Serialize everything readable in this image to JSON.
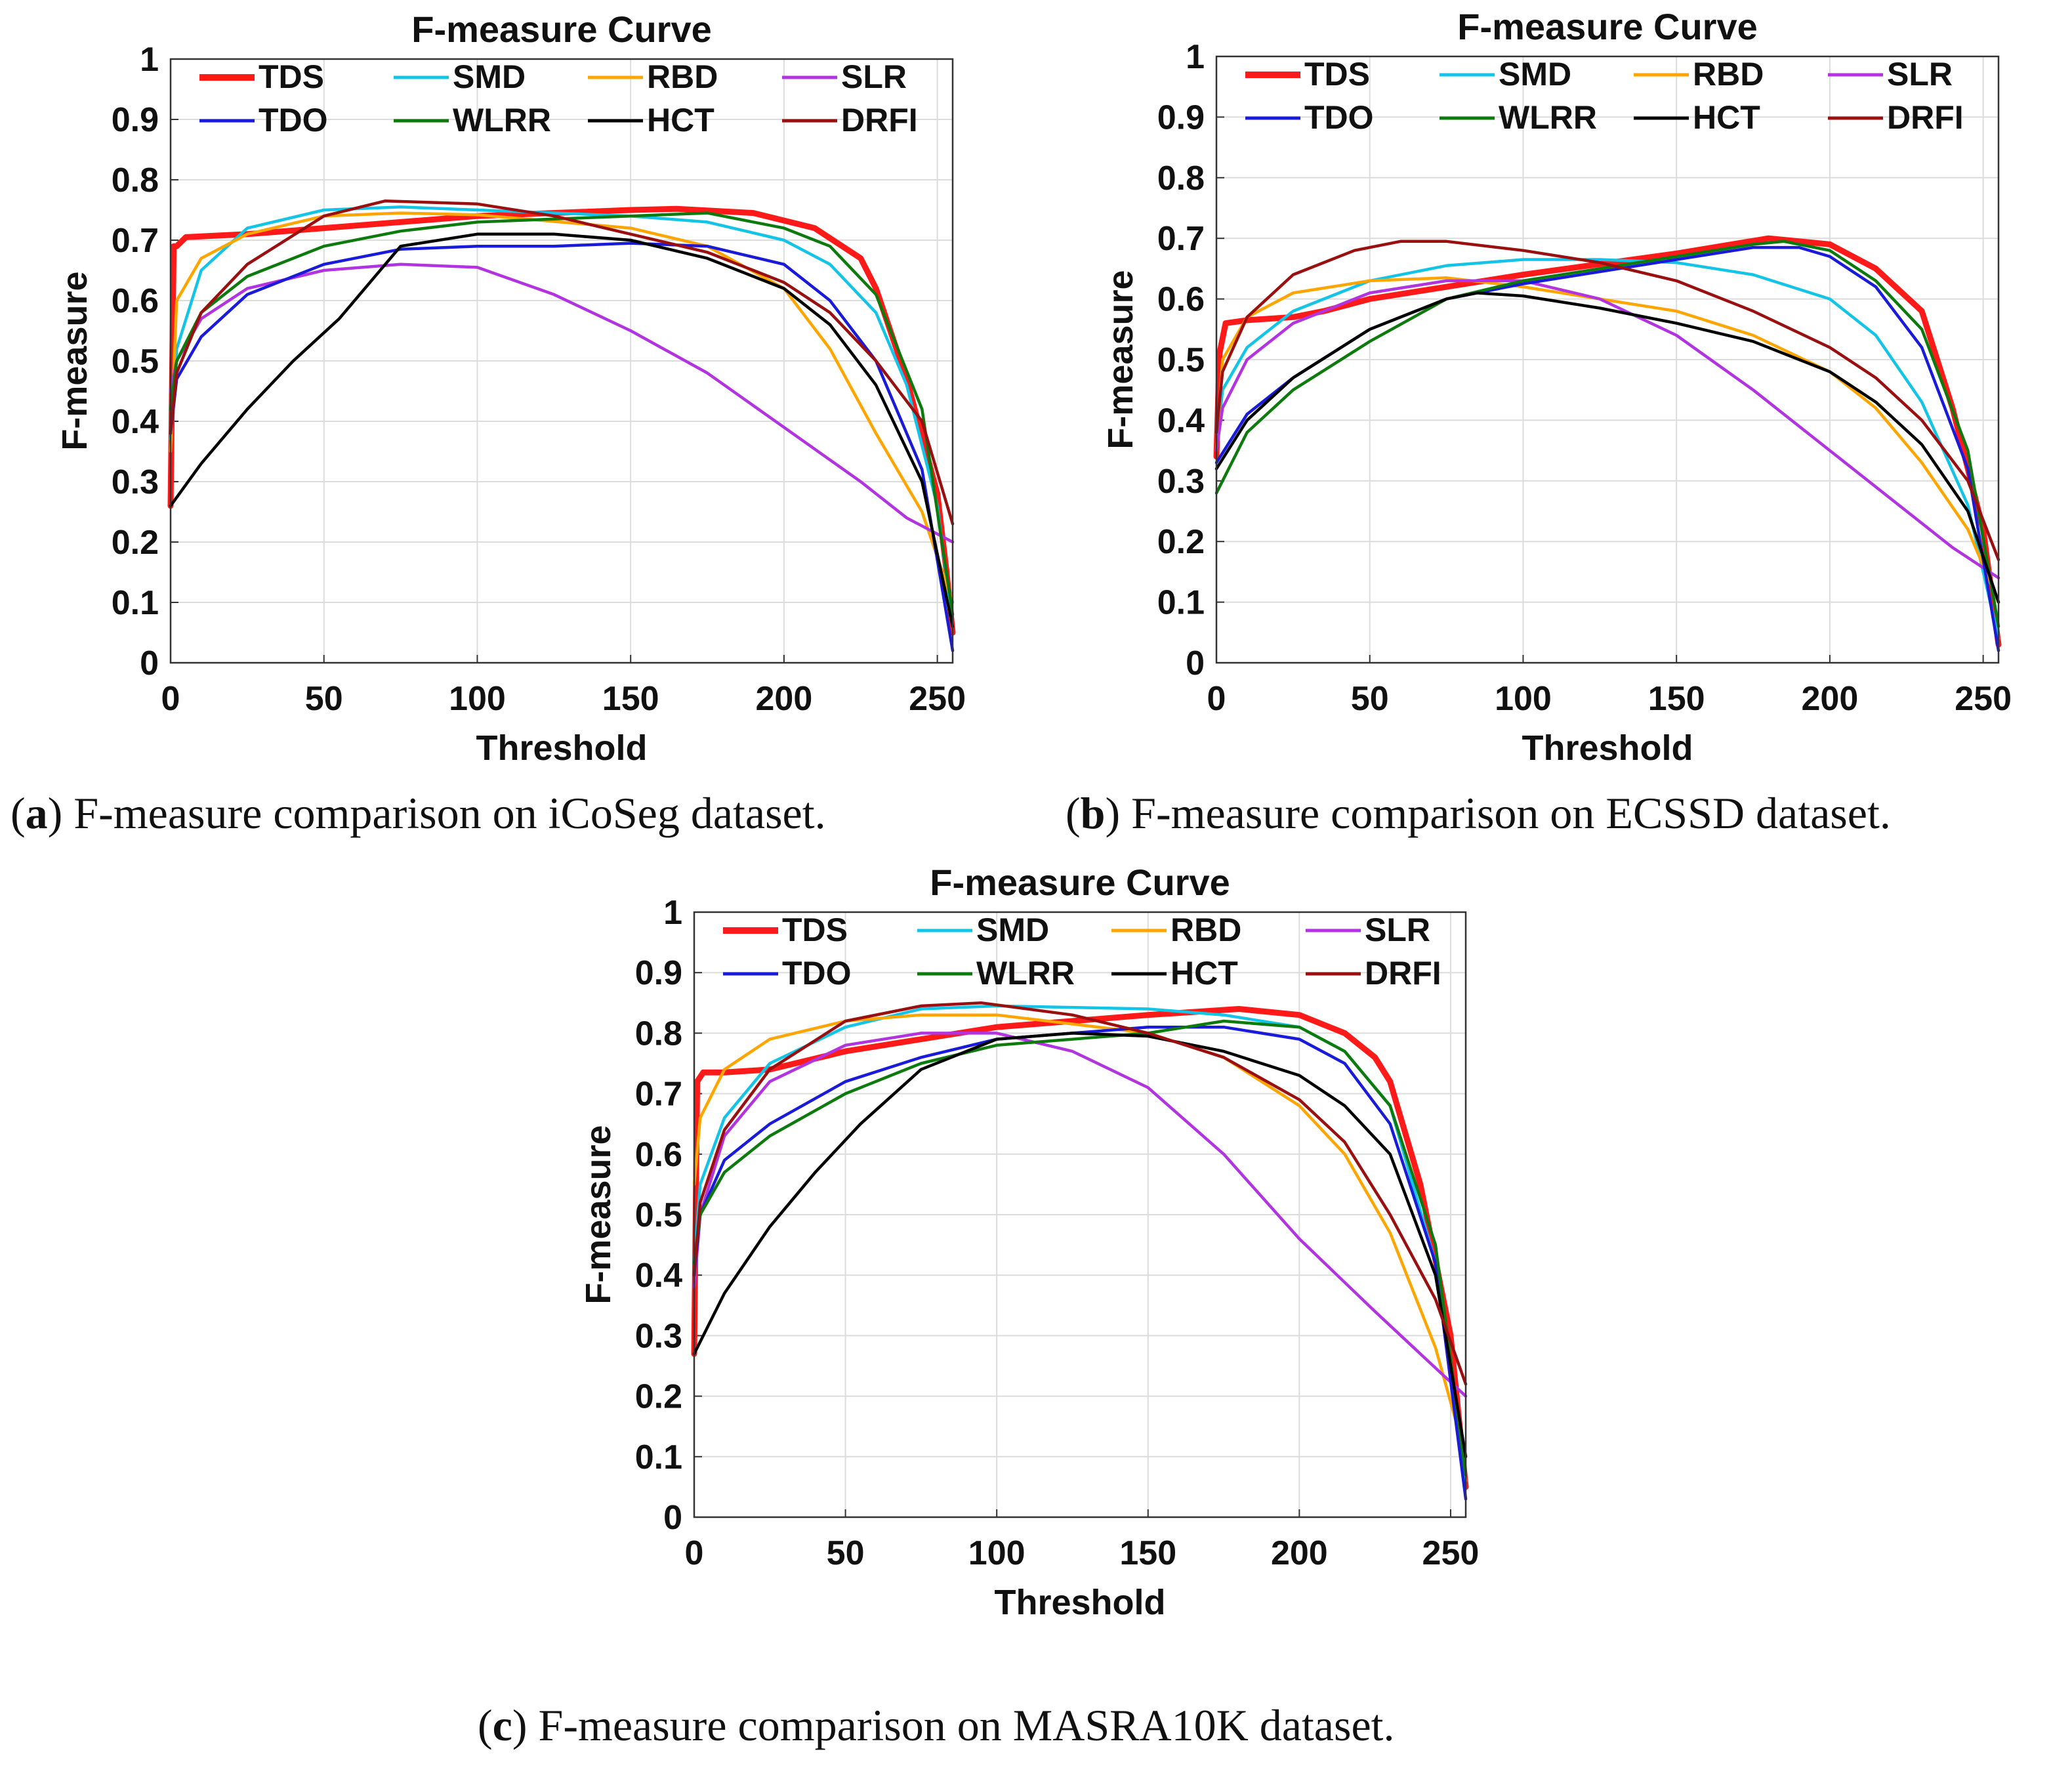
{
  "colors": {
    "TDS": "#ff1a1a",
    "SMD": "#14c4e6",
    "RBD": "#ffa500",
    "SLR": "#b233e0",
    "TDO": "#1a1ad9",
    "WLRR": "#0d7a0d",
    "HCT": "#000000",
    "DRFI": "#9a1010"
  },
  "captions": [
    {
      "tag": "a",
      "text": "F-measure comparison on iCoSeg dataset."
    },
    {
      "tag": "b",
      "text": "F-measure comparison on ECSSD dataset."
    },
    {
      "tag": "c",
      "text": "F-measure comparison on MASRA10K dataset."
    }
  ],
  "chart_data": [
    {
      "type": "line",
      "title": "F-measure Curve",
      "xlabel": "Threshold",
      "ylabel": "F-measure",
      "xlim": [
        0,
        255
      ],
      "ylim": [
        0,
        1
      ],
      "xticks": [
        "0",
        "50",
        "100",
        "150",
        "200",
        "250"
      ],
      "yticks": [
        "0",
        "0.1",
        "0.2",
        "0.3",
        "0.4",
        "0.5",
        "0.6",
        "0.7",
        "0.8",
        "0.9",
        "1"
      ],
      "grid": true,
      "legend": [
        "TDS",
        "SMD",
        "RBD",
        "SLR",
        "TDO",
        "WLRR",
        "HCT",
        "DRFI"
      ],
      "series": [
        {
          "name": "TDS",
          "x": [
            0,
            1,
            2,
            5,
            25,
            50,
            100,
            150,
            165,
            190,
            210,
            225,
            230,
            240,
            250,
            253,
            255
          ],
          "y": [
            0.26,
            0.69,
            0.69,
            0.705,
            0.71,
            0.72,
            0.74,
            0.75,
            0.752,
            0.745,
            0.72,
            0.67,
            0.62,
            0.47,
            0.28,
            0.15,
            0.05
          ]
        },
        {
          "name": "SMD",
          "x": [
            0,
            2,
            10,
            25,
            50,
            75,
            100,
            150,
            175,
            200,
            215,
            230,
            240,
            250,
            255
          ],
          "y": [
            0.37,
            0.52,
            0.65,
            0.72,
            0.75,
            0.755,
            0.75,
            0.74,
            0.73,
            0.7,
            0.66,
            0.58,
            0.46,
            0.26,
            0.06
          ]
        },
        {
          "name": "RBD",
          "x": [
            0,
            2,
            10,
            25,
            50,
            75,
            100,
            150,
            175,
            200,
            215,
            230,
            245,
            255
          ],
          "y": [
            0.35,
            0.6,
            0.67,
            0.71,
            0.74,
            0.745,
            0.742,
            0.72,
            0.69,
            0.62,
            0.52,
            0.38,
            0.25,
            0.1
          ]
        },
        {
          "name": "SLR",
          "x": [
            0,
            2,
            10,
            25,
            50,
            75,
            100,
            125,
            150,
            175,
            200,
            225,
            240,
            255
          ],
          "y": [
            0.45,
            0.5,
            0.57,
            0.62,
            0.65,
            0.66,
            0.655,
            0.61,
            0.55,
            0.48,
            0.39,
            0.3,
            0.24,
            0.2
          ]
        },
        {
          "name": "TDO",
          "x": [
            0,
            2,
            10,
            25,
            50,
            75,
            100,
            125,
            150,
            175,
            200,
            215,
            230,
            245,
            255
          ],
          "y": [
            0.38,
            0.47,
            0.54,
            0.61,
            0.66,
            0.685,
            0.69,
            0.69,
            0.695,
            0.69,
            0.66,
            0.6,
            0.5,
            0.32,
            0.02
          ]
        },
        {
          "name": "WLRR",
          "x": [
            0,
            2,
            10,
            25,
            50,
            75,
            100,
            150,
            175,
            200,
            215,
            230,
            245,
            255
          ],
          "y": [
            0.42,
            0.5,
            0.58,
            0.64,
            0.69,
            0.715,
            0.73,
            0.74,
            0.745,
            0.72,
            0.69,
            0.61,
            0.42,
            0.08
          ]
        },
        {
          "name": "HCT",
          "x": [
            0,
            10,
            25,
            40,
            55,
            65,
            75,
            100,
            125,
            150,
            175,
            200,
            215,
            230,
            245,
            255
          ],
          "y": [
            0.26,
            0.33,
            0.42,
            0.5,
            0.57,
            0.63,
            0.69,
            0.71,
            0.71,
            0.7,
            0.67,
            0.62,
            0.56,
            0.46,
            0.3,
            0.06
          ]
        },
        {
          "name": "DRFI",
          "x": [
            0,
            2,
            10,
            25,
            50,
            70,
            100,
            125,
            150,
            175,
            200,
            215,
            230,
            245,
            255
          ],
          "y": [
            0.38,
            0.48,
            0.58,
            0.66,
            0.74,
            0.765,
            0.76,
            0.74,
            0.71,
            0.68,
            0.63,
            0.58,
            0.5,
            0.4,
            0.23
          ]
        }
      ]
    },
    {
      "type": "line",
      "title": "F-measure Curve",
      "xlabel": "Threshold",
      "ylabel": "F-measure",
      "xlim": [
        0,
        255
      ],
      "ylim": [
        0,
        1
      ],
      "xticks": [
        "0",
        "50",
        "100",
        "150",
        "200",
        "250"
      ],
      "yticks": [
        "0",
        "0.1",
        "0.2",
        "0.3",
        "0.4",
        "0.5",
        "0.6",
        "0.7",
        "0.8",
        "0.9",
        "1"
      ],
      "grid": true,
      "legend": [
        "TDS",
        "SMD",
        "RBD",
        "SLR",
        "TDO",
        "WLRR",
        "HCT",
        "DRFI"
      ],
      "series": [
        {
          "name": "TDS",
          "x": [
            0,
            1,
            3,
            10,
            25,
            35,
            50,
            100,
            150,
            180,
            200,
            215,
            230,
            240,
            250,
            255
          ],
          "y": [
            0.34,
            0.51,
            0.56,
            0.565,
            0.57,
            0.58,
            0.6,
            0.64,
            0.675,
            0.7,
            0.69,
            0.65,
            0.58,
            0.42,
            0.22,
            0.03
          ]
        },
        {
          "name": "SMD",
          "x": [
            0,
            2,
            10,
            25,
            50,
            75,
            100,
            125,
            150,
            175,
            200,
            215,
            230,
            245,
            255
          ],
          "y": [
            0.35,
            0.45,
            0.52,
            0.58,
            0.63,
            0.655,
            0.665,
            0.665,
            0.66,
            0.64,
            0.6,
            0.54,
            0.43,
            0.26,
            0.04
          ]
        },
        {
          "name": "RBD",
          "x": [
            0,
            2,
            10,
            25,
            50,
            75,
            100,
            150,
            175,
            200,
            215,
            230,
            245,
            255
          ],
          "y": [
            0.35,
            0.5,
            0.57,
            0.61,
            0.63,
            0.635,
            0.62,
            0.58,
            0.54,
            0.48,
            0.42,
            0.33,
            0.22,
            0.1
          ]
        },
        {
          "name": "SLR",
          "x": [
            0,
            2,
            10,
            25,
            50,
            75,
            100,
            125,
            150,
            175,
            200,
            225,
            240,
            255
          ],
          "y": [
            0.35,
            0.42,
            0.5,
            0.56,
            0.61,
            0.63,
            0.63,
            0.6,
            0.54,
            0.45,
            0.35,
            0.25,
            0.19,
            0.14
          ]
        },
        {
          "name": "TDO",
          "x": [
            0,
            10,
            25,
            50,
            75,
            100,
            125,
            150,
            175,
            190,
            200,
            215,
            230,
            245,
            255
          ],
          "y": [
            0.33,
            0.41,
            0.47,
            0.55,
            0.6,
            0.625,
            0.645,
            0.665,
            0.685,
            0.685,
            0.67,
            0.62,
            0.52,
            0.32,
            0.02
          ]
        },
        {
          "name": "WLRR",
          "x": [
            0,
            10,
            25,
            50,
            75,
            100,
            125,
            150,
            175,
            185,
            200,
            215,
            230,
            245,
            255
          ],
          "y": [
            0.28,
            0.38,
            0.45,
            0.53,
            0.6,
            0.63,
            0.65,
            0.67,
            0.69,
            0.695,
            0.68,
            0.63,
            0.55,
            0.35,
            0.06
          ]
        },
        {
          "name": "HCT",
          "x": [
            0,
            10,
            25,
            50,
            75,
            85,
            100,
            125,
            150,
            175,
            200,
            215,
            230,
            245,
            255
          ],
          "y": [
            0.32,
            0.4,
            0.47,
            0.55,
            0.6,
            0.61,
            0.605,
            0.585,
            0.56,
            0.53,
            0.48,
            0.43,
            0.36,
            0.25,
            0.1
          ]
        },
        {
          "name": "DRFI",
          "x": [
            0,
            2,
            10,
            25,
            45,
            60,
            75,
            100,
            125,
            150,
            175,
            200,
            215,
            230,
            245,
            255
          ],
          "y": [
            0.38,
            0.48,
            0.57,
            0.64,
            0.68,
            0.695,
            0.695,
            0.68,
            0.66,
            0.63,
            0.58,
            0.52,
            0.47,
            0.4,
            0.3,
            0.17
          ]
        }
      ]
    },
    {
      "type": "line",
      "title": "F-measure Curve",
      "xlabel": "Threshold",
      "ylabel": "F-measure",
      "xlim": [
        0,
        255
      ],
      "ylim": [
        0,
        1
      ],
      "xticks": [
        "0",
        "50",
        "100",
        "150",
        "200",
        "250"
      ],
      "yticks": [
        "0",
        "0.1",
        "0.2",
        "0.3",
        "0.4",
        "0.5",
        "0.6",
        "0.7",
        "0.8",
        "0.9",
        "1"
      ],
      "grid": true,
      "legend": [
        "TDS",
        "SMD",
        "RBD",
        "SLR",
        "TDO",
        "WLRR",
        "HCT",
        "DRFI"
      ],
      "series": [
        {
          "name": "TDS",
          "x": [
            0,
            1,
            3,
            10,
            25,
            50,
            100,
            150,
            180,
            200,
            215,
            225,
            230,
            240,
            250,
            255
          ],
          "y": [
            0.27,
            0.72,
            0.735,
            0.735,
            0.74,
            0.77,
            0.81,
            0.83,
            0.84,
            0.83,
            0.8,
            0.76,
            0.72,
            0.55,
            0.3,
            0.05
          ]
        },
        {
          "name": "SMD",
          "x": [
            0,
            2,
            10,
            25,
            50,
            75,
            100,
            150,
            175,
            200,
            215,
            230,
            245,
            255
          ],
          "y": [
            0.42,
            0.55,
            0.66,
            0.75,
            0.81,
            0.84,
            0.845,
            0.84,
            0.83,
            0.81,
            0.77,
            0.68,
            0.42,
            0.06
          ]
        },
        {
          "name": "RBD",
          "x": [
            0,
            2,
            10,
            25,
            50,
            75,
            100,
            150,
            175,
            200,
            215,
            230,
            245,
            255
          ],
          "y": [
            0.55,
            0.66,
            0.74,
            0.79,
            0.82,
            0.83,
            0.83,
            0.8,
            0.76,
            0.68,
            0.6,
            0.47,
            0.28,
            0.1
          ]
        },
        {
          "name": "SLR",
          "x": [
            0,
            2,
            10,
            25,
            50,
            75,
            100,
            125,
            150,
            175,
            200,
            225,
            240,
            255
          ],
          "y": [
            0.38,
            0.5,
            0.63,
            0.72,
            0.78,
            0.8,
            0.8,
            0.77,
            0.71,
            0.6,
            0.46,
            0.34,
            0.27,
            0.2
          ]
        },
        {
          "name": "TDO",
          "x": [
            0,
            2,
            10,
            25,
            50,
            75,
            100,
            150,
            175,
            200,
            215,
            230,
            245,
            255
          ],
          "y": [
            0.4,
            0.5,
            0.59,
            0.65,
            0.72,
            0.76,
            0.79,
            0.81,
            0.81,
            0.79,
            0.75,
            0.65,
            0.42,
            0.03
          ]
        },
        {
          "name": "WLRR",
          "x": [
            0,
            2,
            10,
            25,
            50,
            75,
            100,
            150,
            175,
            200,
            215,
            230,
            245,
            255
          ],
          "y": [
            0.42,
            0.5,
            0.57,
            0.63,
            0.7,
            0.75,
            0.78,
            0.8,
            0.82,
            0.81,
            0.77,
            0.68,
            0.45,
            0.07
          ]
        },
        {
          "name": "HCT",
          "x": [
            0,
            10,
            25,
            40,
            55,
            75,
            100,
            125,
            150,
            175,
            200,
            215,
            230,
            245,
            255
          ],
          "y": [
            0.27,
            0.37,
            0.48,
            0.57,
            0.65,
            0.74,
            0.79,
            0.8,
            0.795,
            0.77,
            0.73,
            0.68,
            0.6,
            0.4,
            0.1
          ]
        },
        {
          "name": "DRFI",
          "x": [
            0,
            2,
            10,
            25,
            50,
            75,
            95,
            125,
            150,
            175,
            200,
            215,
            230,
            245,
            255
          ],
          "y": [
            0.4,
            0.52,
            0.64,
            0.74,
            0.82,
            0.845,
            0.85,
            0.83,
            0.8,
            0.76,
            0.69,
            0.62,
            0.5,
            0.36,
            0.22
          ]
        }
      ]
    }
  ]
}
